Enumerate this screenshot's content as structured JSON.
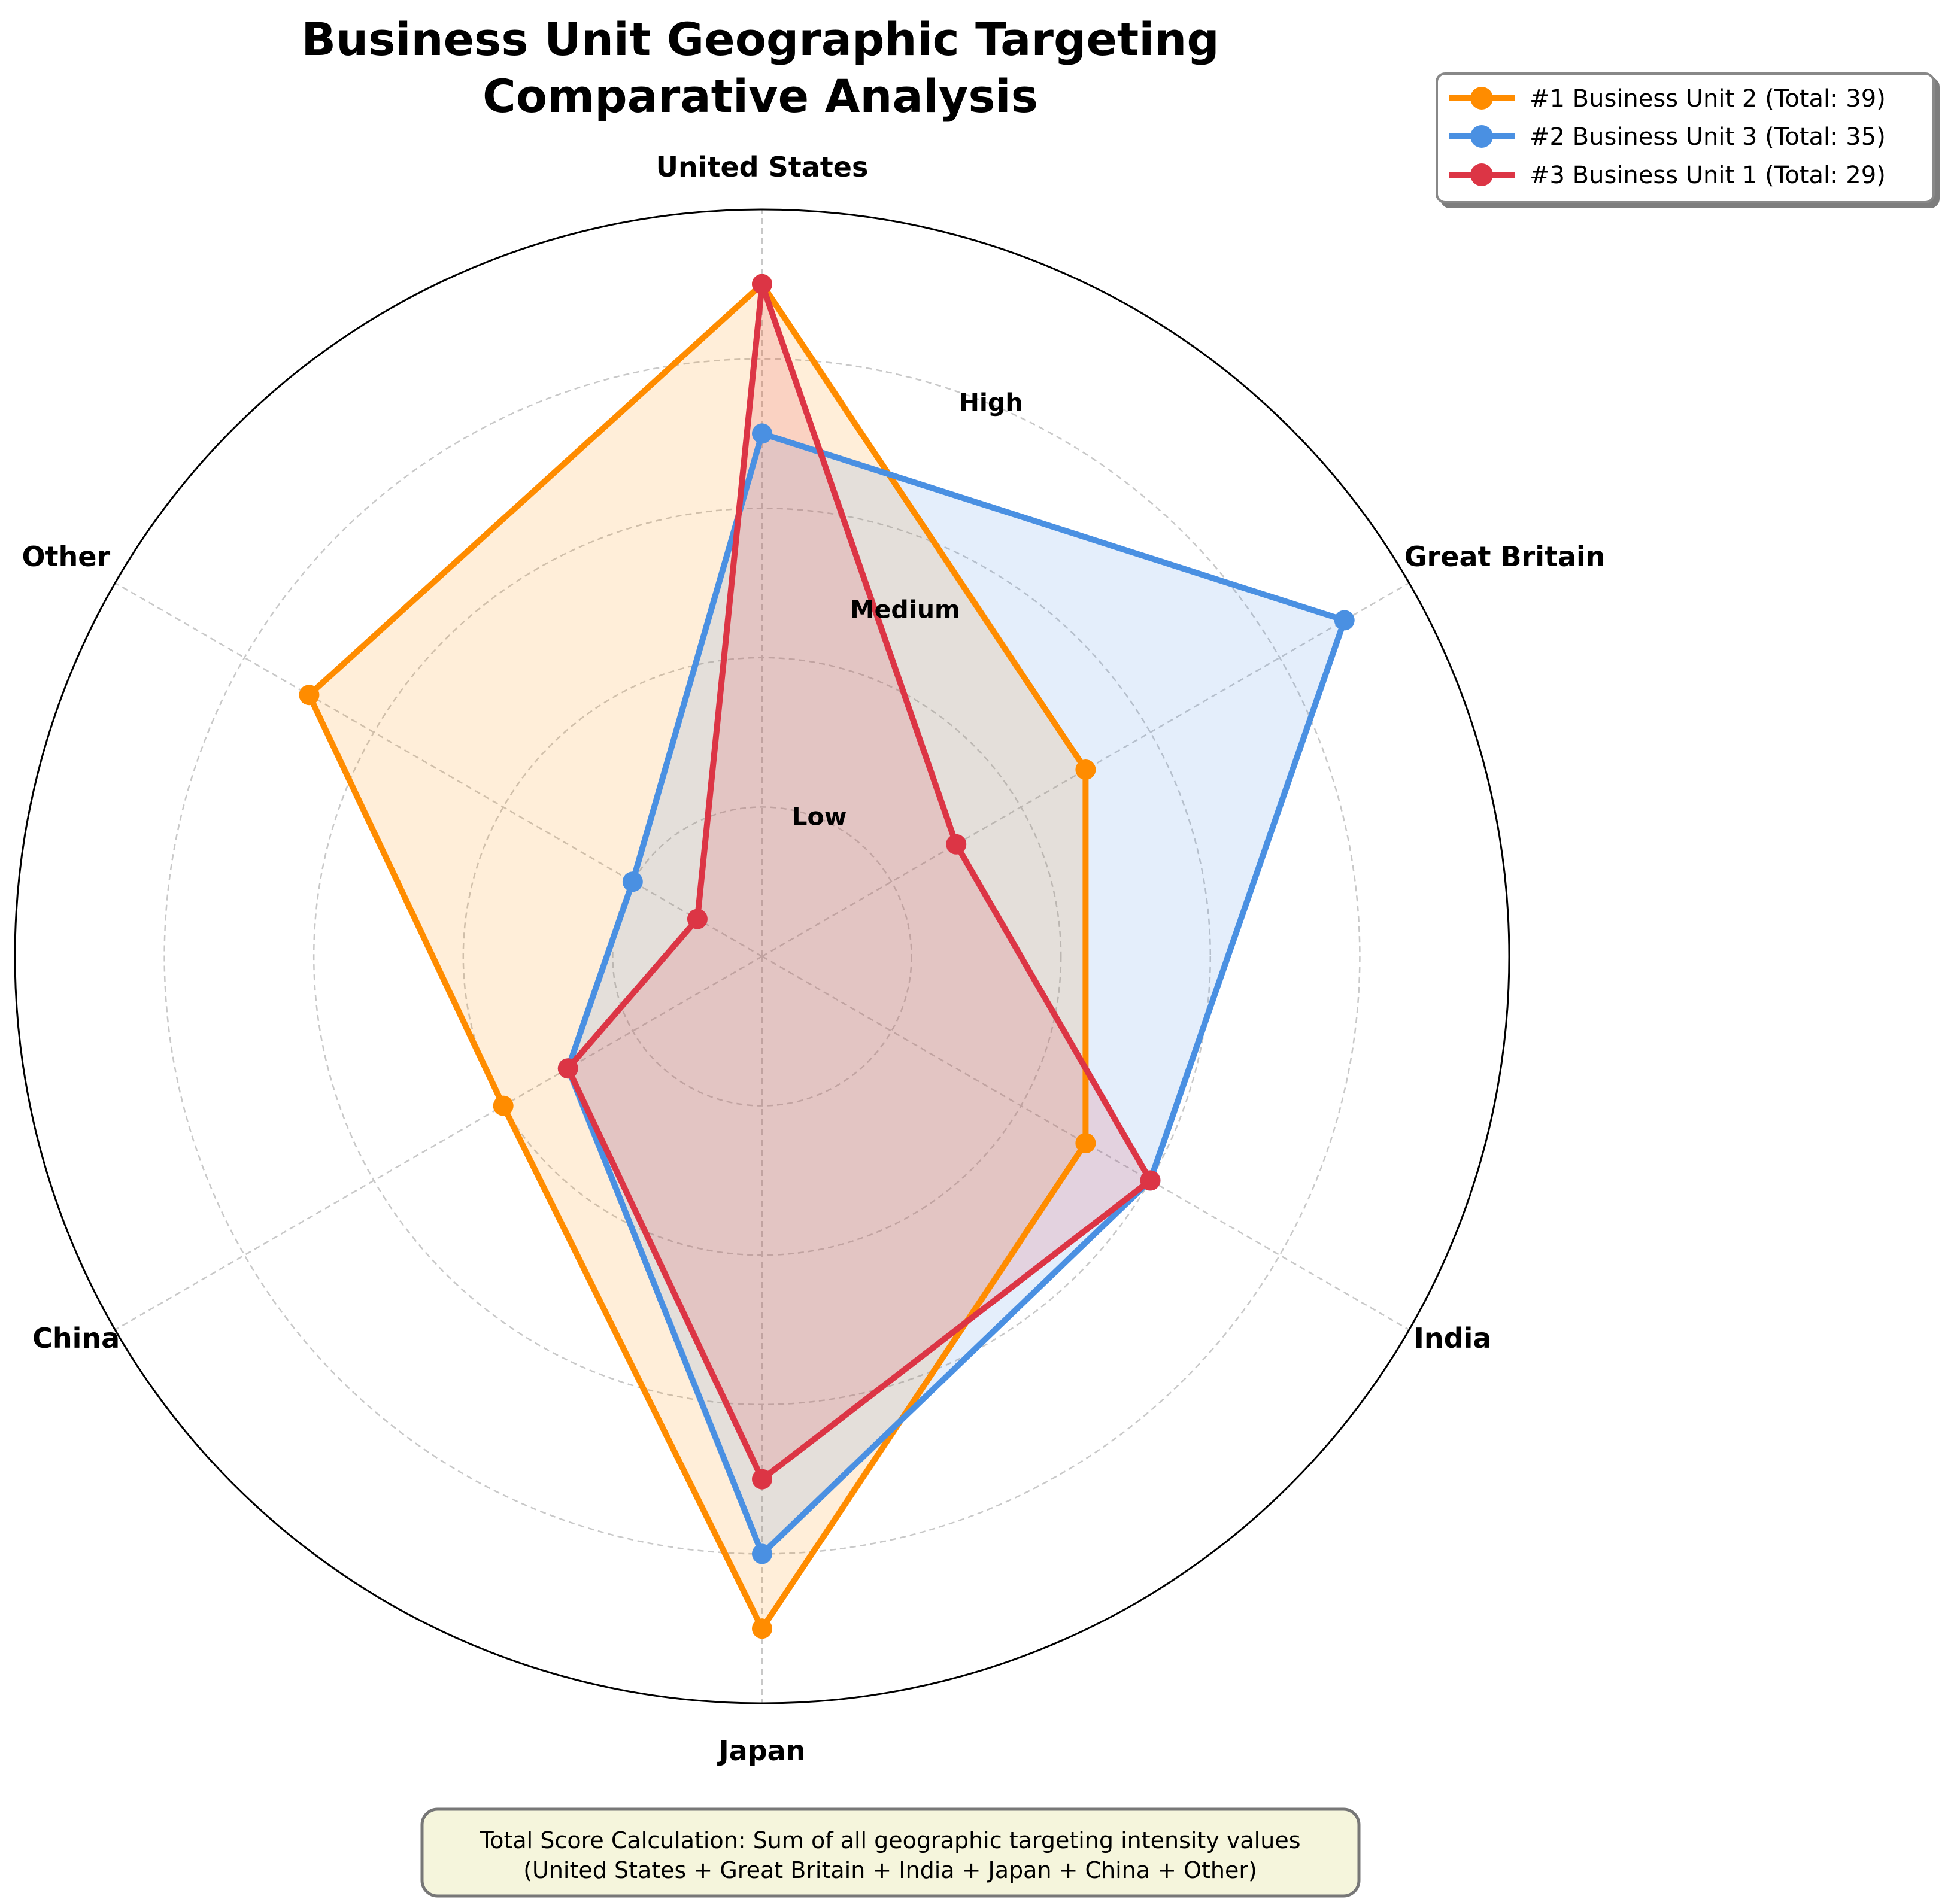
{
  "chart_data": {
    "type": "radar",
    "title_lines": [
      "Business Unit Geographic Targeting",
      "Comparative Analysis"
    ],
    "categories": [
      "United States",
      "Great Britain",
      "India",
      "Japan",
      "China",
      "Other"
    ],
    "rlim": [
      0,
      10
    ],
    "rings": [
      2,
      4,
      6,
      8,
      10
    ],
    "ring_labels": [
      {
        "value": 2,
        "text": "Low"
      },
      {
        "value": 5,
        "text": "Medium"
      },
      {
        "value": 8,
        "text": "High"
      }
    ],
    "grid": true,
    "legend_position": "top-right",
    "series": [
      {
        "name": "#1 Business Unit 2 (Total: 39)",
        "color": "#FF8C00",
        "values": [
          9,
          5,
          5,
          9,
          4,
          7
        ]
      },
      {
        "name": "#2 Business Unit 3 (Total: 35)",
        "color": "#4A90E2",
        "values": [
          7,
          9,
          6,
          8,
          3,
          2
        ]
      },
      {
        "name": "#3 Business Unit 1 (Total: 29)",
        "color": "#DC3545",
        "values": [
          9,
          3,
          6,
          7,
          3,
          1
        ]
      }
    ],
    "note_lines": [
      "Total Score Calculation: Sum of all geographic targeting intensity values",
      "(United States + Great Britain + India + Japan + China + Other)"
    ]
  }
}
